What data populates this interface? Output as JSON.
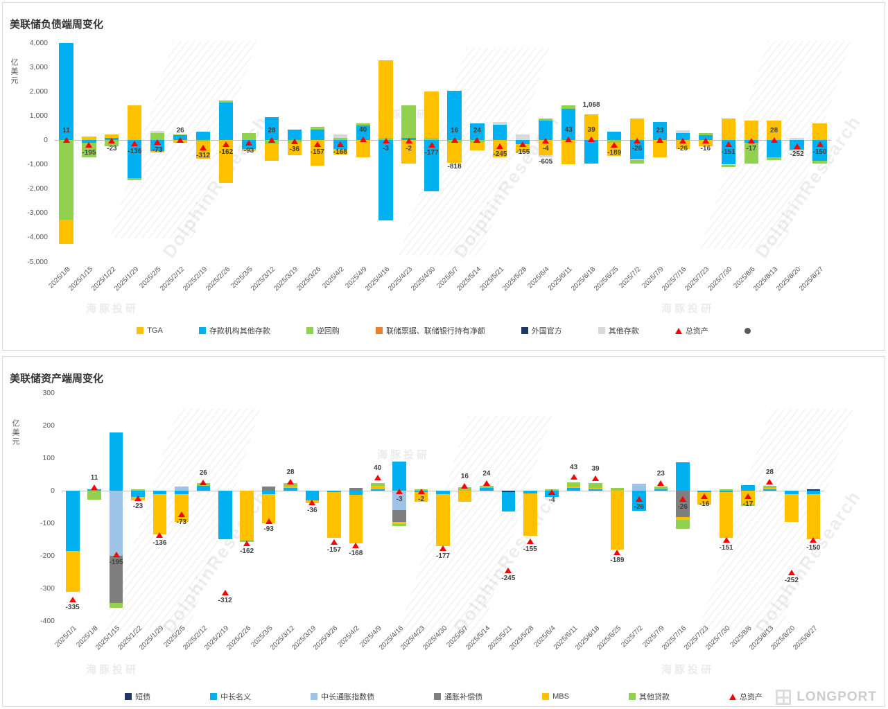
{
  "watermark": {
    "cn": "海豚投研",
    "en": "DolphinResearch"
  },
  "footer": {
    "brand": "LONGPORT"
  },
  "chart_data": [
    {
      "type": "stacked-bar",
      "title": "美联储负债端周变化",
      "ylabel": "亿美元",
      "ylim": [
        -5000,
        4000
      ],
      "ytick": 1000,
      "grid": false,
      "legend_position": "bottom",
      "categories": [
        "2025/1/8",
        "2025/1/15",
        "2025/1/22",
        "2025/1/29",
        "2025/2/5",
        "2025/2/12",
        "2025/2/19",
        "2025/2/26",
        "2025/3/5",
        "2025/3/12",
        "2025/3/19",
        "2025/3/26",
        "2025/4/2",
        "2025/4/9",
        "2025/4/16",
        "2025/4/23",
        "2025/4/30",
        "2025/5/7",
        "2025/5/14",
        "2025/5/21",
        "2025/5/28",
        "2025/6/4",
        "2025/6/11",
        "2025/6/18",
        "2025/6/25",
        "2025/7/2",
        "2025/7/9",
        "2025/7/16",
        "2025/7/23",
        "2025/7/30",
        "2025/8/6",
        "2025/8/13",
        "2025/8/20",
        "2025/8/27"
      ],
      "series": [
        {
          "name": "存款机构其他存款",
          "color": "#00B0F0",
          "values": [
            4000,
            -100,
            100,
            -1550,
            -450,
            200,
            350,
            1550,
            -350,
            950,
            450,
            450,
            -350,
            600,
            -3300,
            100,
            -2100,
            2050,
            700,
            650,
            -150,
            800,
            1300,
            -950,
            350,
            -800,
            750,
            300,
            200,
            -1000,
            -100,
            -700,
            -400,
            -850
          ]
        },
        {
          "name": "逆回购",
          "color": "#92D050",
          "values": [
            -3270,
            -600,
            -250,
            -100,
            300,
            50,
            -50,
            100,
            300,
            -150,
            -100,
            100,
            100,
            100,
            100,
            1350,
            100,
            -100,
            -100,
            0,
            0,
            100,
            150,
            0,
            -100,
            -150,
            0,
            0,
            100,
            -100,
            -850,
            -100,
            0,
            -100
          ]
        },
        {
          "name": "TGA",
          "color": "#FFC000",
          "values": [
            -1000,
            150,
            150,
            1450,
            -50,
            -100,
            -700,
            -1750,
            -100,
            -700,
            -500,
            -1050,
            -250,
            -700,
            3200,
            -950,
            1900,
            -818,
            -300,
            -700,
            -350,
            -605,
            -1000,
            1068,
            -550,
            900,
            -700,
            -350,
            -250,
            900,
            800,
            800,
            -50,
            700
          ]
        },
        {
          "name": "联储票据、联储银行持有净额",
          "color": "#ED7D31",
          "values": [
            0,
            0,
            0,
            0,
            0,
            0,
            0,
            0,
            0,
            0,
            0,
            0,
            0,
            0,
            0,
            0,
            0,
            0,
            0,
            0,
            0,
            0,
            0,
            0,
            0,
            0,
            0,
            0,
            0,
            0,
            0,
            0,
            0,
            0
          ]
        },
        {
          "name": "外国官方",
          "color": "#1F3864",
          "values": [
            0,
            0,
            0,
            0,
            0,
            0,
            0,
            0,
            0,
            0,
            0,
            0,
            0,
            0,
            0,
            0,
            0,
            0,
            0,
            0,
            0,
            0,
            0,
            0,
            0,
            0,
            0,
            0,
            0,
            0,
            0,
            0,
            0,
            0
          ]
        },
        {
          "name": "其他存款",
          "color": "#D9D9D9",
          "values": [
            0,
            0,
            0,
            0,
            80,
            0,
            0,
            0,
            0,
            0,
            0,
            0,
            150,
            0,
            0,
            0,
            0,
            0,
            0,
            100,
            250,
            -100,
            0,
            0,
            0,
            0,
            0,
            100,
            0,
            0,
            0,
            0,
            100,
            0
          ]
        }
      ],
      "totals": {
        "name": "总资产",
        "color": "#FF0000",
        "values": [
          11,
          -195,
          -23,
          -136,
          -73,
          26,
          -312,
          -162,
          -93,
          28,
          -36,
          -157,
          -168,
          40,
          -3,
          -2,
          -177,
          16,
          24,
          -245,
          -155,
          -4,
          43,
          39,
          -189,
          -26,
          23,
          -26,
          -16,
          -151,
          -17,
          28,
          -252,
          -150
        ]
      },
      "annotations": [
        {
          "category_index": 17,
          "value": -818,
          "label": "-818"
        },
        {
          "category_index": 21,
          "value": -605,
          "label": "-605"
        },
        {
          "category_index": 23,
          "value": 1068,
          "label": "1,068"
        }
      ],
      "legend": [
        {
          "label": "TGA",
          "marker": "square",
          "color": "#FFC000"
        },
        {
          "label": "存款机构其他存款",
          "marker": "square",
          "color": "#00B0F0"
        },
        {
          "label": "逆回购",
          "marker": "square",
          "color": "#92D050"
        },
        {
          "label": "联储票据、联储银行持有净额",
          "marker": "square",
          "color": "#ED7D31"
        },
        {
          "label": "外国官方",
          "marker": "square",
          "color": "#1F3864"
        },
        {
          "label": "其他存款",
          "marker": "square",
          "color": "#D9D9D9"
        },
        {
          "label": "总资产",
          "marker": "triangle",
          "color": "#FF0000"
        },
        {
          "label": "",
          "marker": "circle",
          "color": "#595959"
        }
      ]
    },
    {
      "type": "stacked-bar",
      "title": "美联储资产端周变化",
      "ylabel": "亿美元",
      "ylim": [
        -400,
        300
      ],
      "ytick": 100,
      "grid": false,
      "legend_position": "bottom",
      "categories": [
        "2025/1/1",
        "2025/1/8",
        "2025/1/15",
        "2025/1/22",
        "2025/1/29",
        "2025/2/5",
        "2025/2/12",
        "2025/2/19",
        "2025/2/26",
        "2025/3/5",
        "2025/3/12",
        "2025/3/19",
        "2025/3/26",
        "2025/4/2",
        "2025/4/9",
        "2025/4/16",
        "2025/4/23",
        "2025/4/30",
        "2025/5/7",
        "2025/5/14",
        "2025/5/21",
        "2025/5/28",
        "2025/6/4",
        "2025/6/11",
        "2025/6/18",
        "2025/6/25",
        "2025/7/2",
        "2025/7/9",
        "2025/7/16",
        "2025/7/23",
        "2025/7/30",
        "2025/8/6",
        "2025/8/13",
        "2025/8/20",
        "2025/8/27"
      ],
      "series": [
        {
          "name": "短债",
          "color": "#1F3864",
          "values": [
            0,
            0,
            0,
            0,
            0,
            0,
            0,
            0,
            0,
            0,
            0,
            0,
            0,
            0,
            0,
            0,
            0,
            0,
            0,
            0,
            -5,
            0,
            0,
            0,
            0,
            0,
            0,
            0,
            0,
            0,
            0,
            0,
            0,
            0,
            5
          ]
        },
        {
          "name": "中长名义",
          "color": "#00B0F0",
          "values": [
            -185,
            5,
            178,
            -20,
            -10,
            -10,
            15,
            -148,
            0,
            -10,
            8,
            -30,
            -5,
            -12,
            5,
            90,
            -5,
            -10,
            0,
            8,
            -60,
            -8,
            -20,
            8,
            4,
            0,
            -62,
            5,
            88,
            -5,
            -5,
            18,
            5,
            -10,
            -10
          ]
        },
        {
          "name": "中长通胀指数债",
          "color": "#9DC3E6",
          "values": [
            0,
            0,
            -200,
            0,
            0,
            12,
            0,
            0,
            0,
            0,
            0,
            0,
            0,
            0,
            0,
            -60,
            0,
            0,
            0,
            0,
            0,
            0,
            0,
            0,
            0,
            0,
            22,
            0,
            0,
            0,
            0,
            0,
            0,
            0,
            0
          ]
        },
        {
          "name": "通胀补偿债",
          "color": "#7F7F7F",
          "values": [
            0,
            0,
            -145,
            0,
            0,
            0,
            0,
            0,
            0,
            12,
            0,
            0,
            0,
            8,
            0,
            -35,
            0,
            0,
            0,
            0,
            0,
            0,
            0,
            0,
            0,
            0,
            0,
            0,
            -80,
            0,
            0,
            0,
            0,
            0,
            0
          ]
        },
        {
          "name": "MBS",
          "color": "#FFC000",
          "values": [
            -125,
            0,
            0,
            -10,
            -125,
            -85,
            0,
            0,
            -150,
            -90,
            5,
            -8,
            -140,
            -150,
            10,
            -8,
            -30,
            -160,
            -35,
            0,
            0,
            -130,
            0,
            5,
            5,
            -180,
            0,
            0,
            -10,
            -38,
            -140,
            -42,
            3,
            -85,
            -140
          ]
        },
        {
          "name": "其他贷款",
          "color": "#92D050",
          "values": [
            0,
            -28,
            -15,
            5,
            0,
            0,
            8,
            0,
            -8,
            0,
            10,
            0,
            0,
            0,
            8,
            -5,
            5,
            0,
            10,
            6,
            0,
            0,
            5,
            12,
            15,
            8,
            0,
            8,
            -28,
            0,
            5,
            -5,
            8,
            0,
            0
          ]
        }
      ],
      "totals": {
        "name": "总资产",
        "color": "#FF0000",
        "values": [
          -335,
          11,
          -195,
          -23,
          -136,
          -73,
          26,
          -312,
          -162,
          -93,
          28,
          -36,
          -157,
          -168,
          40,
          -3,
          -2,
          -177,
          16,
          24,
          -245,
          -155,
          -4,
          43,
          39,
          -189,
          -26,
          23,
          -26,
          -16,
          -151,
          -17,
          28,
          -252,
          -150
        ]
      },
      "annotations": [],
      "legend": [
        {
          "label": "短债",
          "marker": "square",
          "color": "#1F3864"
        },
        {
          "label": "中长名义",
          "marker": "square",
          "color": "#00B0F0"
        },
        {
          "label": "中长通胀指数债",
          "marker": "square",
          "color": "#9DC3E6"
        },
        {
          "label": "通胀补偿债",
          "marker": "square",
          "color": "#7F7F7F"
        },
        {
          "label": "MBS",
          "marker": "square",
          "color": "#FFC000"
        },
        {
          "label": "其他贷款",
          "marker": "square",
          "color": "#92D050"
        },
        {
          "label": "总资产",
          "marker": "triangle",
          "color": "#FF0000"
        }
      ]
    }
  ]
}
